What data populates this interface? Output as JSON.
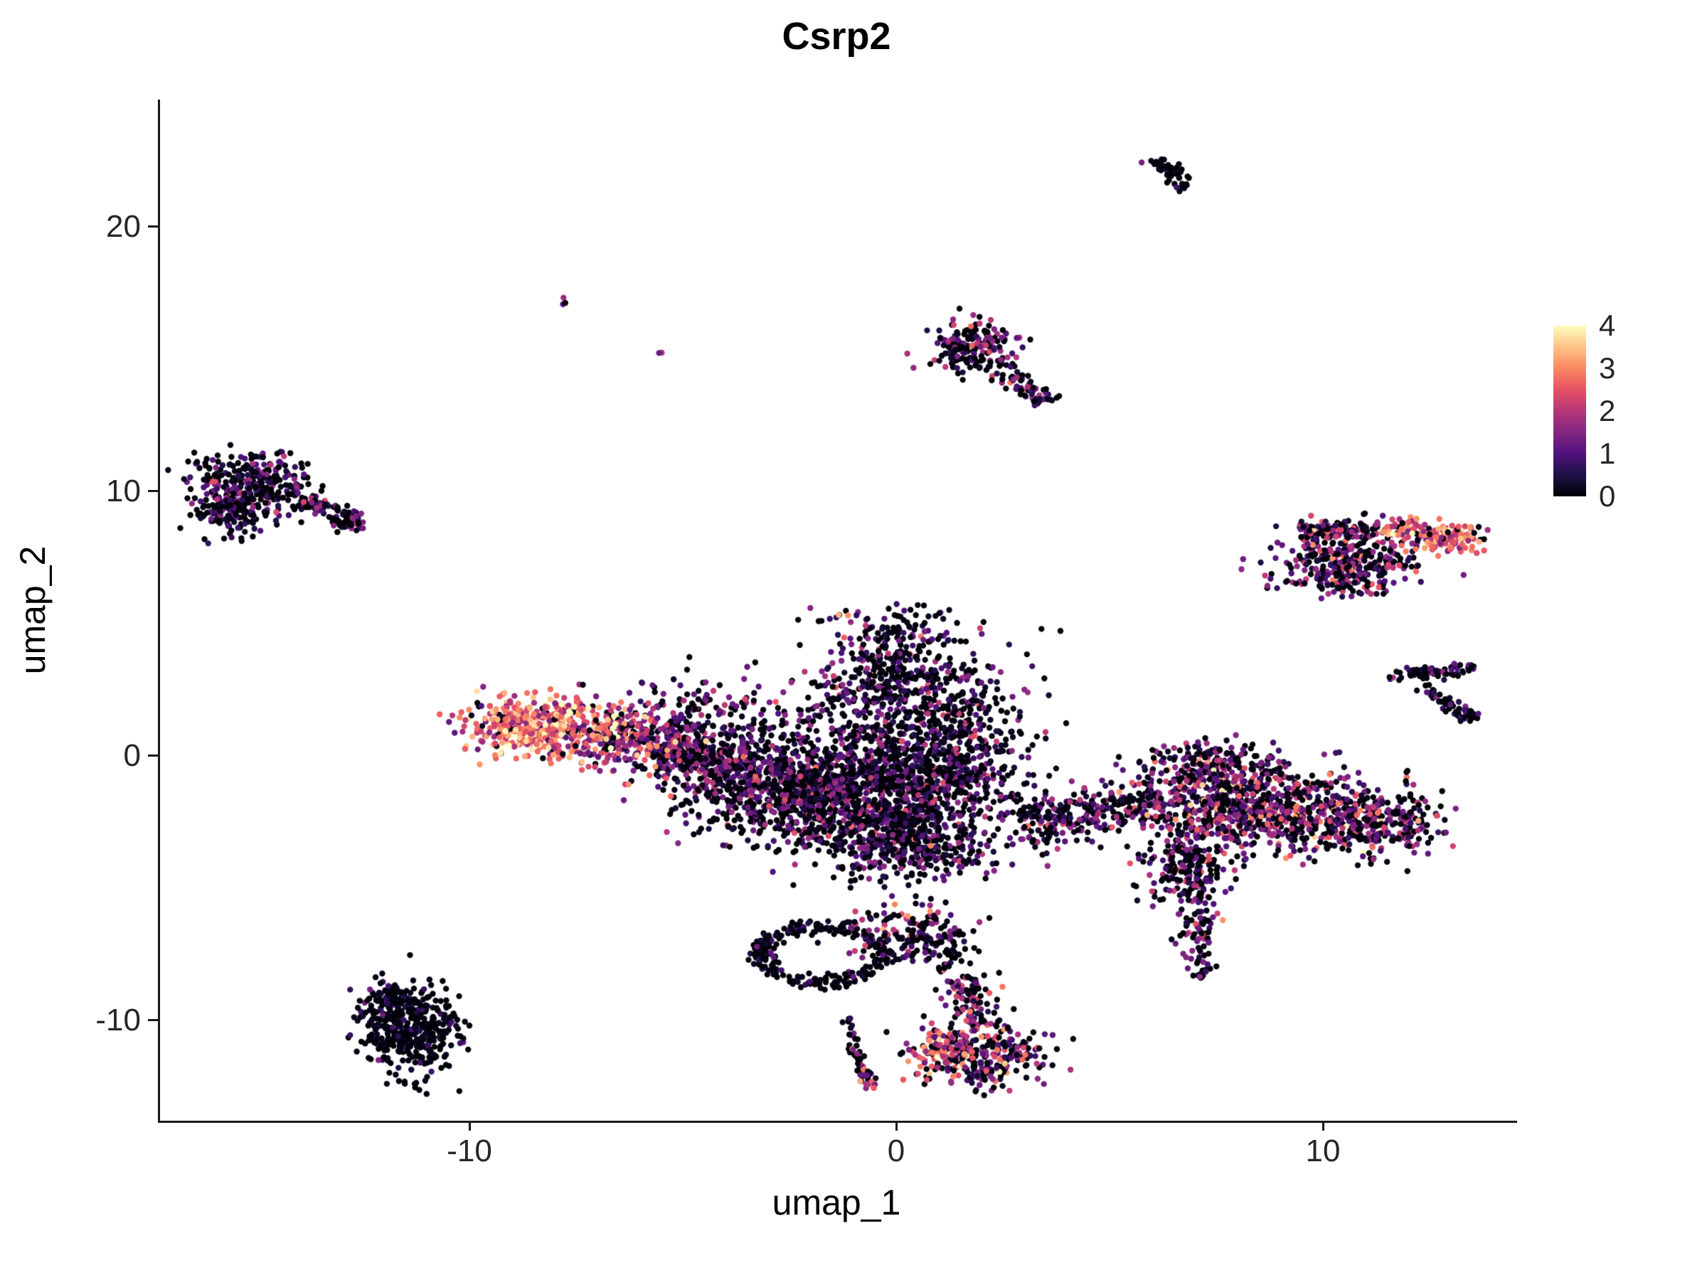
{
  "chart_data": {
    "type": "scatter",
    "title": "Csrp2",
    "xlabel": "umap_1",
    "ylabel": "umap_2",
    "xlim": [
      -17.3,
      14.5
    ],
    "ylim": [
      -13.8,
      24.8
    ],
    "x_ticks": [
      -10,
      0,
      10
    ],
    "y_ticks": [
      -10,
      0,
      10,
      20
    ],
    "grid": false,
    "background": "#FFFFFF",
    "axis_color": "#1a1a1a",
    "point_radius_px": 4.2,
    "legend_position": "right",
    "colorbar": {
      "ticks": [
        0,
        1,
        2,
        3,
        4
      ],
      "vmin": 0,
      "vmax": 4,
      "palette_name": "magma",
      "palette": [
        {
          "t": 0.0,
          "color": "#000004"
        },
        {
          "t": 0.125,
          "color": "#1D1147"
        },
        {
          "t": 0.25,
          "color": "#51127C"
        },
        {
          "t": 0.375,
          "color": "#822681"
        },
        {
          "t": 0.5,
          "color": "#B63679"
        },
        {
          "t": 0.625,
          "color": "#E65164"
        },
        {
          "t": 0.75,
          "color": "#FB8861"
        },
        {
          "t": 0.875,
          "color": "#FEC287"
        },
        {
          "t": 1.0,
          "color": "#FCFDBF"
        }
      ]
    },
    "clusters": [
      {
        "name": "central-core-left",
        "shape": "gauss",
        "cx": -2.9,
        "cy": -1.0,
        "sx": 1.15,
        "sy": 1.05,
        "n": 750,
        "expr": {
          "p0": 0.45,
          "mean": 1.0,
          "sd": 0.7
        }
      },
      {
        "name": "central-core-mid",
        "shape": "gauss",
        "cx": -0.9,
        "cy": -1.7,
        "sx": 1.2,
        "sy": 1.05,
        "n": 750,
        "expr": {
          "p0": 0.48,
          "mean": 1.0,
          "sd": 0.7
        }
      },
      {
        "name": "central-core-right",
        "shape": "gauss",
        "cx": 0.9,
        "cy": -0.8,
        "sx": 1.15,
        "sy": 1.35,
        "n": 650,
        "expr": {
          "p0": 0.5,
          "mean": 0.95,
          "sd": 0.7
        }
      },
      {
        "name": "central-fan-upper",
        "shape": "gauss",
        "cx": 0.1,
        "cy": 2.0,
        "sx": 1.35,
        "sy": 1.25,
        "n": 520,
        "expr": {
          "p0": 0.5,
          "mean": 1.0,
          "sd": 0.75
        }
      },
      {
        "name": "central-top-peak",
        "shape": "gauss",
        "cx": -0.2,
        "cy": 4.3,
        "sx": 0.85,
        "sy": 0.8,
        "n": 170,
        "expr": {
          "p0": 0.5,
          "mean": 0.95,
          "sd": 0.7
        }
      },
      {
        "name": "central-top-spark",
        "shape": "gauss",
        "cx": -1.25,
        "cy": 5.4,
        "sx": 0.12,
        "sy": 0.1,
        "n": 2,
        "expr": {
          "p0": 0.0,
          "mean": 3.1,
          "sd": 0.4
        }
      },
      {
        "name": "central-left-sparse",
        "shape": "gauss",
        "cx": -4.8,
        "cy": 1.7,
        "sx": 1.05,
        "sy": 0.85,
        "n": 140,
        "expr": {
          "p0": 0.45,
          "mean": 1.2,
          "sd": 0.75
        }
      },
      {
        "name": "central-bottom-bulge",
        "shape": "gauss",
        "cx": 0.2,
        "cy": -3.6,
        "sx": 1.05,
        "sy": 0.6,
        "n": 260,
        "expr": {
          "p0": 0.5,
          "mean": 0.95,
          "sd": 0.7
        }
      },
      {
        "name": "central-right-strip",
        "shape": "streak",
        "x1": 2.9,
        "y1": -2.6,
        "x2": 6.2,
        "y2": -1.6,
        "w": 0.5,
        "n": 300,
        "expr": {
          "p0": 0.48,
          "mean": 1.0,
          "sd": 0.7
        }
      },
      {
        "name": "left-arm-neck",
        "shape": "streak",
        "x1": -5.6,
        "y1": 0.4,
        "x2": -4.0,
        "y2": -0.7,
        "w": 0.55,
        "n": 240,
        "expr": {
          "p0": 0.4,
          "mean": 1.3,
          "sd": 0.8
        }
      },
      {
        "name": "left-arm-mid",
        "shape": "gauss",
        "cx": -6.4,
        "cy": 0.7,
        "sx": 0.7,
        "sy": 0.55,
        "n": 280,
        "expr": {
          "p0": 0.22,
          "mean": 1.9,
          "sd": 0.9
        }
      },
      {
        "name": "left-arm-hotspot",
        "shape": "gauss",
        "cx": -8.5,
        "cy": 1.1,
        "sx": 0.8,
        "sy": 0.55,
        "n": 430,
        "expr": {
          "p0": 0.07,
          "mean": 2.7,
          "sd": 0.75
        }
      },
      {
        "name": "right-mid-top",
        "shape": "gauss",
        "cx": 7.3,
        "cy": -0.3,
        "sx": 0.85,
        "sy": 0.45,
        "n": 130,
        "expr": {
          "p0": 0.4,
          "mean": 1.2,
          "sd": 0.8
        }
      },
      {
        "name": "right-mid-core1",
        "shape": "gauss",
        "cx": 7.6,
        "cy": -1.7,
        "sx": 0.95,
        "sy": 0.9,
        "n": 470,
        "expr": {
          "p0": 0.33,
          "mean": 1.35,
          "sd": 0.9
        }
      },
      {
        "name": "right-mid-core2",
        "shape": "gauss",
        "cx": 9.6,
        "cy": -2.2,
        "sx": 1.0,
        "sy": 0.8,
        "n": 420,
        "expr": {
          "p0": 0.33,
          "mean": 1.35,
          "sd": 0.9
        }
      },
      {
        "name": "right-mid-east",
        "shape": "gauss",
        "cx": 11.4,
        "cy": -2.6,
        "sx": 0.7,
        "sy": 0.6,
        "n": 210,
        "expr": {
          "p0": 0.38,
          "mean": 1.25,
          "sd": 0.9
        }
      },
      {
        "name": "right-mid-southwest",
        "shape": "gauss",
        "cx": 6.7,
        "cy": -4.2,
        "sx": 0.55,
        "sy": 0.65,
        "n": 140,
        "expr": {
          "p0": 0.45,
          "mean": 1.1,
          "sd": 0.8
        }
      },
      {
        "name": "right-mid-tail",
        "shape": "streak",
        "x1": 7.0,
        "y1": -3.6,
        "x2": 7.1,
        "y2": -8.4,
        "w": 0.22,
        "n": 130,
        "expr": {
          "p0": 0.5,
          "mean": 1.1,
          "sd": 0.8
        }
      },
      {
        "name": "upper-center-blob",
        "shape": "gauss",
        "cx": 1.7,
        "cy": 15.5,
        "sx": 0.55,
        "sy": 0.5,
        "n": 180,
        "expr": {
          "p0": 0.5,
          "mean": 1.1,
          "sd": 0.8
        }
      },
      {
        "name": "upper-center-tail",
        "shape": "streak",
        "x1": 2.3,
        "y1": 14.9,
        "x2": 3.5,
        "y2": 13.3,
        "w": 0.16,
        "n": 65,
        "expr": {
          "p0": 0.55,
          "mean": 1.0,
          "sd": 0.7
        }
      },
      {
        "name": "top-streak",
        "shape": "streak",
        "x1": 5.9,
        "y1": 22.6,
        "x2": 6.8,
        "y2": 21.5,
        "w": 0.13,
        "n": 55,
        "expr": {
          "p0": 0.72,
          "mean": 0.8,
          "sd": 0.5
        }
      },
      {
        "name": "isolated-dot-a",
        "shape": "gauss",
        "cx": -7.9,
        "cy": 17.1,
        "sx": 0.07,
        "sy": 0.09,
        "n": 3,
        "expr": {
          "p0": 0.5,
          "mean": 1.0,
          "sd": 0.4
        }
      },
      {
        "name": "isolated-dot-b",
        "shape": "gauss",
        "cx": -5.6,
        "cy": 15.2,
        "sx": 0.05,
        "sy": 0.05,
        "n": 2,
        "expr": {
          "p0": 0.3,
          "mean": 1.2,
          "sd": 0.4
        }
      },
      {
        "name": "left-cluster-blob",
        "shape": "gauss",
        "cx": -15.2,
        "cy": 10.1,
        "sx": 0.7,
        "sy": 0.65,
        "n": 330,
        "expr": {
          "p0": 0.55,
          "mean": 0.95,
          "sd": 0.65
        }
      },
      {
        "name": "left-cluster-lower",
        "shape": "gauss",
        "cx": -15.7,
        "cy": 9.2,
        "sx": 0.35,
        "sy": 0.5,
        "n": 90,
        "expr": {
          "p0": 0.6,
          "mean": 0.8,
          "sd": 0.5
        }
      },
      {
        "name": "left-cluster-tail",
        "shape": "streak",
        "x1": -14.3,
        "y1": 9.9,
        "x2": -12.7,
        "y2": 8.9,
        "w": 0.16,
        "n": 75,
        "expr": {
          "p0": 0.55,
          "mean": 1.0,
          "sd": 0.6
        }
      },
      {
        "name": "left-cluster-clump",
        "shape": "gauss",
        "cx": -12.85,
        "cy": 8.85,
        "sx": 0.2,
        "sy": 0.2,
        "n": 45,
        "expr": {
          "p0": 0.5,
          "mean": 1.0,
          "sd": 0.6
        }
      },
      {
        "name": "right-upper-body",
        "shape": "gauss",
        "cx": 10.6,
        "cy": 7.4,
        "sx": 0.85,
        "sy": 0.55,
        "n": 240,
        "expr": {
          "p0": 0.33,
          "mean": 1.35,
          "sd": 0.85
        }
      },
      {
        "name": "right-upper-edge-west",
        "shape": "streak",
        "x1": 9.4,
        "y1": 8.45,
        "x2": 11.4,
        "y2": 8.6,
        "w": 0.22,
        "n": 110,
        "expr": {
          "p0": 0.3,
          "mean": 1.4,
          "sd": 0.9
        }
      },
      {
        "name": "right-upper-edge-east",
        "shape": "streak",
        "x1": 11.4,
        "y1": 8.6,
        "x2": 13.4,
        "y2": 8.3,
        "w": 0.22,
        "n": 110,
        "expr": {
          "p0": 0.12,
          "mean": 2.5,
          "sd": 0.8
        }
      },
      {
        "name": "right-upper-hot-tip",
        "shape": "gauss",
        "cx": 12.9,
        "cy": 8.2,
        "sx": 0.45,
        "sy": 0.3,
        "n": 70,
        "expr": {
          "p0": 0.1,
          "mean": 2.7,
          "sd": 0.7
        }
      },
      {
        "name": "right-upper-lower",
        "shape": "gauss",
        "cx": 10.3,
        "cy": 6.6,
        "sx": 0.6,
        "sy": 0.35,
        "n": 80,
        "expr": {
          "p0": 0.4,
          "mean": 1.2,
          "sd": 0.8
        }
      },
      {
        "name": "chevron-top",
        "shape": "streak",
        "x1": 11.5,
        "y1": 3.0,
        "x2": 13.5,
        "y2": 3.3,
        "w": 0.13,
        "n": 70,
        "expr": {
          "p0": 0.68,
          "mean": 0.8,
          "sd": 0.5
        }
      },
      {
        "name": "chevron-diag",
        "shape": "streak",
        "x1": 12.3,
        "y1": 2.7,
        "x2": 13.4,
        "y2": 1.3,
        "w": 0.13,
        "n": 50,
        "expr": {
          "p0": 0.68,
          "mean": 0.8,
          "sd": 0.5
        }
      },
      {
        "name": "chevron-dot",
        "shape": "gauss",
        "cx": 13.45,
        "cy": 1.5,
        "sx": 0.15,
        "sy": 0.15,
        "n": 14,
        "expr": {
          "p0": 0.6,
          "mean": 0.8,
          "sd": 0.5
        }
      },
      {
        "name": "bottom-ring",
        "shape": "ring",
        "cx": -1.8,
        "cy": -7.5,
        "rx": 1.45,
        "ry": 1.05,
        "w": 0.16,
        "n": 270,
        "expr": {
          "p0": 0.82,
          "mean": 0.6,
          "sd": 0.4
        }
      },
      {
        "name": "ring-right-mix",
        "shape": "gauss",
        "cx": 0.1,
        "cy": -6.6,
        "sx": 0.75,
        "sy": 0.6,
        "n": 100,
        "expr": {
          "p0": 0.35,
          "mean": 1.5,
          "sd": 0.95
        }
      },
      {
        "name": "ring-right-tail",
        "shape": "gauss",
        "cx": 0.8,
        "cy": -7.1,
        "sx": 0.5,
        "sy": 0.4,
        "n": 70,
        "expr": {
          "p0": 0.7,
          "mean": 0.8,
          "sd": 0.5
        }
      },
      {
        "name": "bottom-left-blob",
        "shape": "gauss",
        "cx": -11.4,
        "cy": -10.4,
        "sx": 0.6,
        "sy": 0.8,
        "n": 400,
        "expr": {
          "p0": 0.75,
          "mean": 0.5,
          "sd": 0.45
        }
      },
      {
        "name": "bottom-left-clump",
        "shape": "gauss",
        "cx": -11.95,
        "cy": -9.2,
        "sx": 0.3,
        "sy": 0.28,
        "n": 70,
        "expr": {
          "p0": 0.7,
          "mean": 0.6,
          "sd": 0.45
        }
      },
      {
        "name": "bottom-streak",
        "shape": "streak",
        "x1": -1.25,
        "y1": -9.9,
        "x2": -0.72,
        "y2": -12.35,
        "w": 0.1,
        "n": 48,
        "expr": {
          "p0": 0.55,
          "mean": 1.2,
          "sd": 0.9
        }
      },
      {
        "name": "bottom-streak-tip",
        "shape": "gauss",
        "cx": -0.7,
        "cy": -12.5,
        "sx": 0.12,
        "sy": 0.12,
        "n": 10,
        "expr": {
          "p0": 0.1,
          "mean": 2.3,
          "sd": 0.5
        }
      },
      {
        "name": "funnel-neck",
        "shape": "streak",
        "x1": 1.35,
        "y1": -8.4,
        "x2": 2.0,
        "y2": -10.3,
        "w": 0.3,
        "n": 100,
        "expr": {
          "p0": 0.45,
          "mean": 1.3,
          "sd": 0.9
        }
      },
      {
        "name": "funnel-blob",
        "shape": "gauss",
        "cx": 1.95,
        "cy": -11.3,
        "sx": 0.8,
        "sy": 0.62,
        "n": 280,
        "expr": {
          "p0": 0.4,
          "mean": 1.4,
          "sd": 1.0
        }
      },
      {
        "name": "funnel-hot-edge",
        "shape": "gauss",
        "cx": 0.95,
        "cy": -11.2,
        "sx": 0.32,
        "sy": 0.5,
        "n": 60,
        "expr": {
          "p0": 0.12,
          "mean": 2.3,
          "sd": 0.7
        }
      },
      {
        "name": "funnel-top-dots",
        "shape": "gauss",
        "cx": 1.2,
        "cy": -7.7,
        "sx": 0.25,
        "sy": 0.3,
        "n": 12,
        "expr": {
          "p0": 0.75,
          "mean": 0.7,
          "sd": 0.4
        }
      }
    ]
  }
}
